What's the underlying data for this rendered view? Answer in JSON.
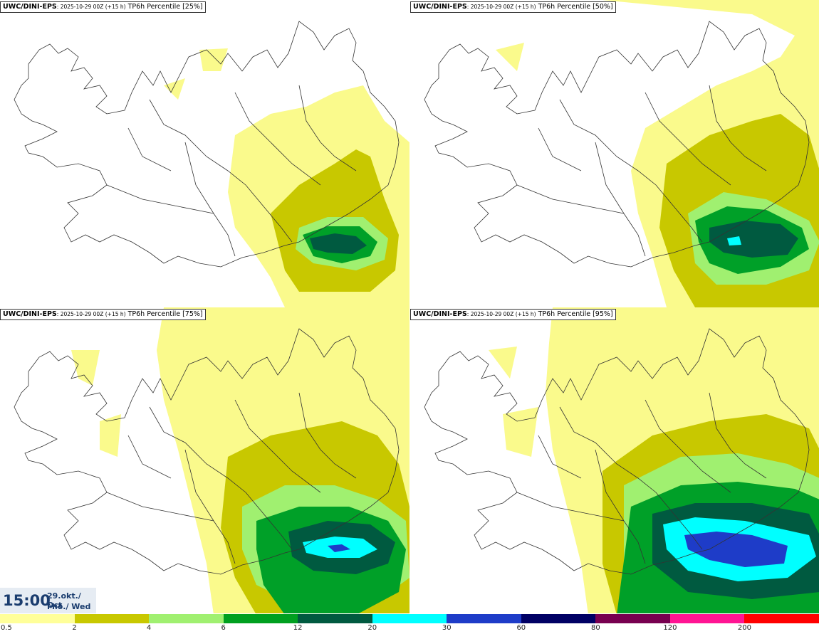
{
  "panels": [
    {
      "model": "UWC/DINI-EPS",
      "run": ": 2025-10-29 00Z (+15 h)",
      "field": "TP6h Percentile [25%]"
    },
    {
      "model": "UWC/DINI-EPS",
      "run": ": 2025-10-29 00Z (+15 h)",
      "field": "TP6h Percentile [50%]"
    },
    {
      "model": "UWC/DINI-EPS",
      "run": ": 2025-10-29 00Z (+15 h)",
      "field": "TP6h Percentile [75%]"
    },
    {
      "model": "UWC/DINI-EPS",
      "run": ": 2025-10-29 00Z (+15 h)",
      "field": "TP6h Percentile [95%]"
    }
  ],
  "valid_time": {
    "time": "15:00",
    "date": "29.okt./ Oct",
    "day": "Mið./ Wed"
  },
  "legend": {
    "ticks": [
      "0.5",
      "2",
      "4",
      "6",
      "12",
      "20",
      "30",
      "60",
      "80",
      "120",
      "200"
    ],
    "colors": [
      "#ffff99",
      "#c8c800",
      "#a0f070",
      "#00a020",
      "#005a40",
      "#00ffff",
      "#1e3cc8",
      "#000064",
      "#780050",
      "#ff1493",
      "#ff0000"
    ]
  },
  "precip_colors": {
    "l1": "#fafa8c",
    "l2": "#c8c800",
    "l3": "#a0f070",
    "l4": "#00a028",
    "l5": "#005a40",
    "l6": "#00ffff",
    "l7": "#1e3cc8"
  }
}
